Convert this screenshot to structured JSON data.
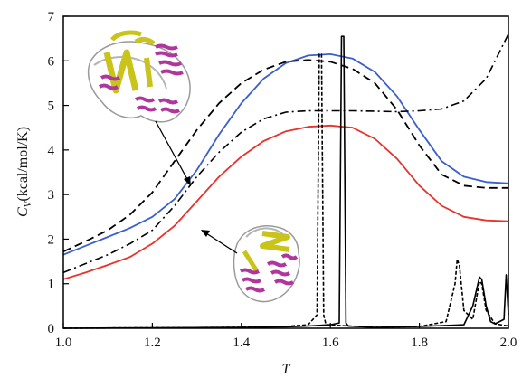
{
  "chart_data": {
    "type": "line",
    "xlabel": "T",
    "ylabel": "C",
    "ylabel_subscript": "V",
    "ylabel_unit": "(kcal/mol/K)",
    "xlim": [
      1.0,
      2.0
    ],
    "ylim": [
      0,
      7
    ],
    "xticks": [
      "1.0",
      "1.2",
      "1.4",
      "1.6",
      "1.8",
      "2.0"
    ],
    "yticks": [
      "0",
      "1",
      "2",
      "3",
      "4",
      "5",
      "6",
      "7"
    ],
    "grid": false,
    "legend": "none",
    "series": [
      {
        "style": "solid",
        "color": "#3a5fcd",
        "x": [
          1.0,
          1.05,
          1.1,
          1.15,
          1.2,
          1.25,
          1.3,
          1.35,
          1.4,
          1.45,
          1.5,
          1.55,
          1.6,
          1.65,
          1.7,
          1.75,
          1.8,
          1.85,
          1.9,
          1.95,
          2.0
        ],
        "y": [
          1.65,
          1.85,
          2.05,
          2.25,
          2.5,
          2.9,
          3.55,
          4.35,
          5.05,
          5.6,
          5.95,
          6.12,
          6.15,
          6.05,
          5.75,
          5.2,
          4.45,
          3.75,
          3.4,
          3.28,
          3.25
        ]
      },
      {
        "style": "dashed",
        "color": "#000000",
        "x": [
          1.0,
          1.05,
          1.1,
          1.15,
          1.2,
          1.25,
          1.3,
          1.35,
          1.4,
          1.45,
          1.5,
          1.55,
          1.6,
          1.65,
          1.7,
          1.75,
          1.8,
          1.85,
          1.9,
          1.95,
          2.0
        ],
        "y": [
          1.72,
          1.95,
          2.2,
          2.55,
          3.05,
          3.75,
          4.45,
          5.05,
          5.5,
          5.8,
          5.98,
          6.02,
          5.98,
          5.82,
          5.5,
          4.9,
          4.1,
          3.45,
          3.2,
          3.15,
          3.15
        ]
      },
      {
        "style": "dashdot",
        "color": "#000000",
        "x": [
          1.0,
          1.05,
          1.1,
          1.15,
          1.2,
          1.25,
          1.3,
          1.35,
          1.4,
          1.45,
          1.5,
          1.55,
          1.6,
          1.65,
          1.7,
          1.75,
          1.8,
          1.85,
          1.9,
          1.95,
          2.0
        ],
        "y": [
          1.25,
          1.45,
          1.65,
          1.9,
          2.2,
          2.75,
          3.4,
          3.95,
          4.4,
          4.7,
          4.85,
          4.88,
          4.88,
          4.88,
          4.87,
          4.86,
          4.88,
          4.92,
          5.1,
          5.6,
          6.6
        ]
      },
      {
        "style": "solid",
        "color": "#e8322a",
        "x": [
          1.0,
          1.05,
          1.1,
          1.15,
          1.2,
          1.25,
          1.3,
          1.35,
          1.4,
          1.45,
          1.5,
          1.55,
          1.6,
          1.65,
          1.7,
          1.75,
          1.8,
          1.85,
          1.9,
          1.95,
          2.0
        ],
        "y": [
          1.1,
          1.25,
          1.42,
          1.6,
          1.9,
          2.3,
          2.85,
          3.4,
          3.85,
          4.2,
          4.42,
          4.52,
          4.55,
          4.5,
          4.25,
          3.8,
          3.2,
          2.75,
          2.5,
          2.42,
          2.4
        ]
      },
      {
        "style": "solid-thin",
        "color": "#000000",
        "x": [
          1.0,
          1.2,
          1.4,
          1.5,
          1.55,
          1.6,
          1.62,
          1.625,
          1.63,
          1.635,
          1.64,
          1.7,
          1.8,
          1.9,
          1.92,
          1.935,
          1.94,
          1.95,
          1.96,
          1.97,
          1.99,
          1.995,
          2.0
        ],
        "y": [
          0,
          0.01,
          0.02,
          0.03,
          0.05,
          0.08,
          0.12,
          6.55,
          6.55,
          0.12,
          0.05,
          0.02,
          0.04,
          0.08,
          0.5,
          1.15,
          1.1,
          0.5,
          0.15,
          0.1,
          0.2,
          1.2,
          0.3
        ]
      },
      {
        "style": "dashed-thin",
        "color": "#000000",
        "x": [
          1.0,
          1.2,
          1.4,
          1.5,
          1.55,
          1.57,
          1.575,
          1.58,
          1.585,
          1.59,
          1.7,
          1.8,
          1.86,
          1.88,
          1.885,
          1.89,
          1.9,
          1.92,
          1.935,
          1.94,
          1.95,
          1.97,
          2.0
        ],
        "y": [
          0,
          0.01,
          0.02,
          0.04,
          0.08,
          0.3,
          6.15,
          6.15,
          0.3,
          0.08,
          0.02,
          0.04,
          0.15,
          1.0,
          1.55,
          1.4,
          0.4,
          0.2,
          1.05,
          1.0,
          0.4,
          0.1,
          0.05
        ]
      }
    ],
    "insets": [
      {
        "name": "protein-structure-top",
        "arrow_to": "dashed"
      },
      {
        "name": "protein-structure-bottom",
        "arrow_to": "red"
      }
    ]
  }
}
